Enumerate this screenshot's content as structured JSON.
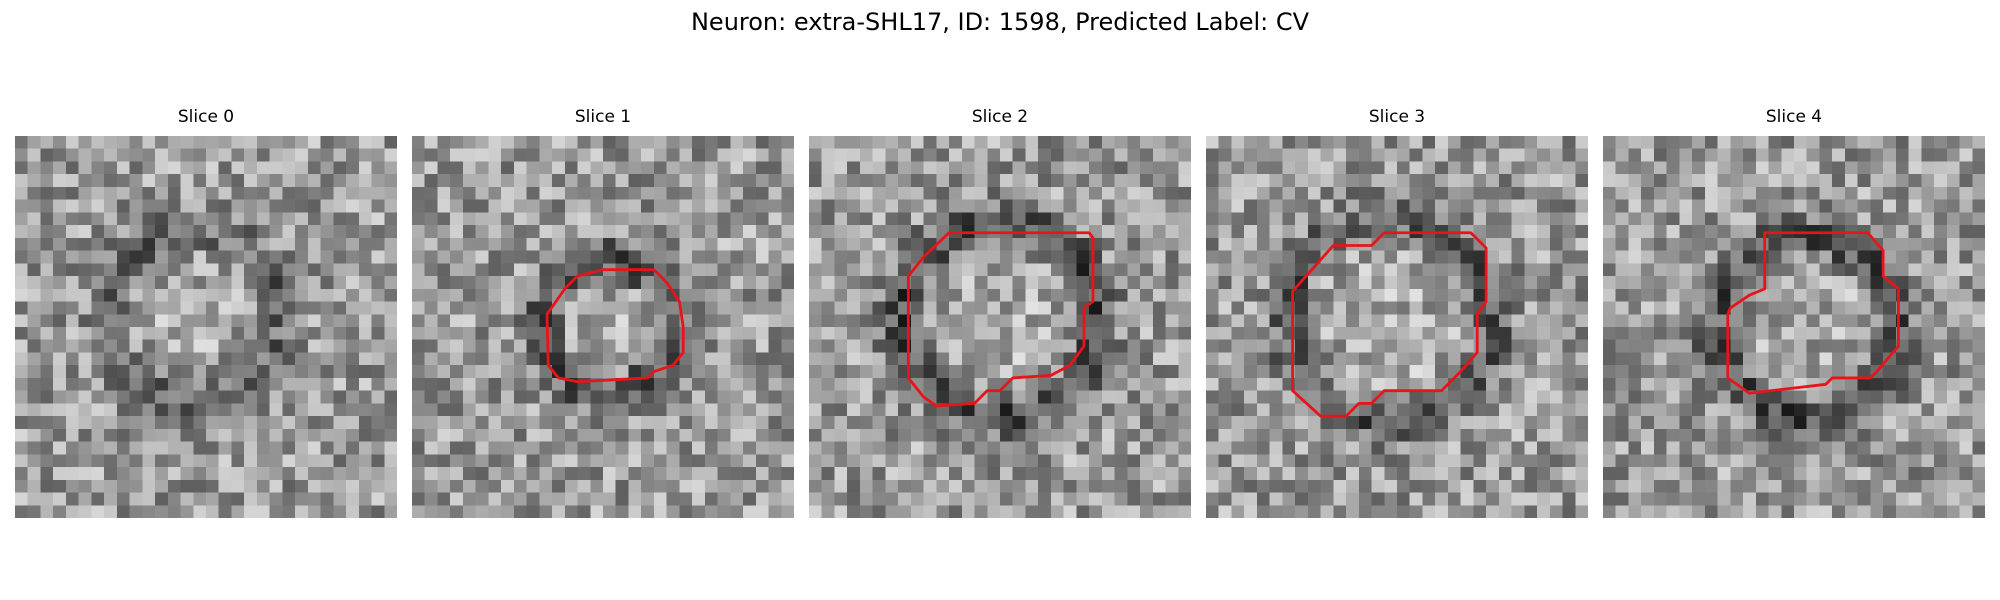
{
  "figure": {
    "title": "Neuron: extra-SHL17, ID: 1598, Predicted Label: CV"
  },
  "colors": {
    "contour": "#e8141a"
  },
  "panels": [
    {
      "title": "Slice 0",
      "has_contour": false
    },
    {
      "title": "Slice 1",
      "has_contour": true
    },
    {
      "title": "Slice 2",
      "has_contour": true
    },
    {
      "title": "Slice 3",
      "has_contour": true
    },
    {
      "title": "Slice 4",
      "has_contour": true
    }
  ]
}
